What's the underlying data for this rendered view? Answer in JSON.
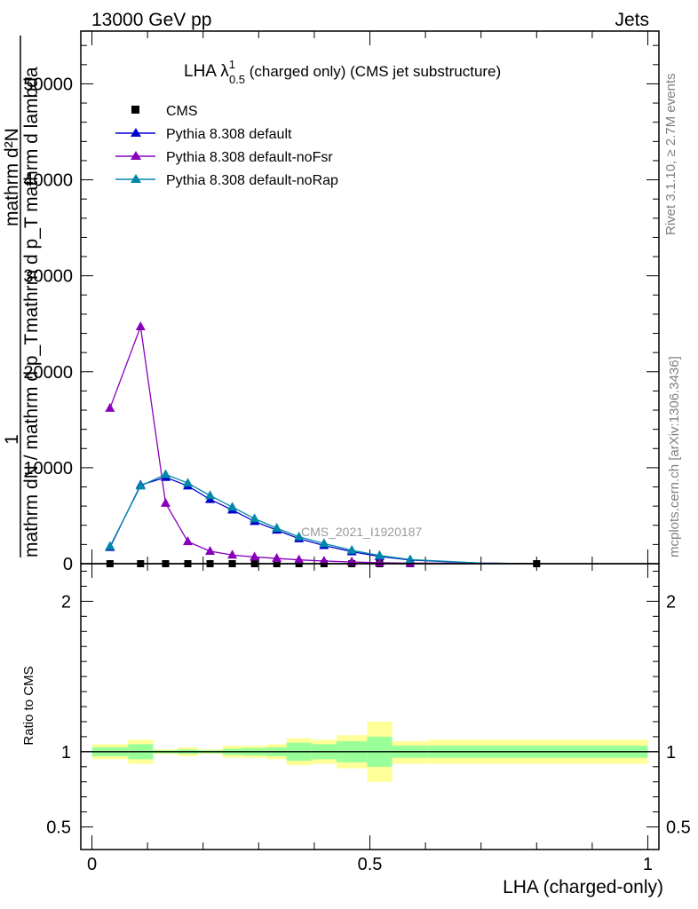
{
  "header": {
    "left": "13000 GeV pp",
    "right": "Jets"
  },
  "side_labels": {
    "rivet": "Rivet 3.1.10, ≥ 2.7M events",
    "mcplots": "mcplots.cern.ch [arXiv:1306.3436]"
  },
  "watermark": "CMS_2021_I1920187",
  "chart_data": {
    "type": "line",
    "title": {
      "main": "LHA λ",
      "sup": "1",
      "sub": "0.5",
      "rest": " (charged only) (CMS jet substructure)"
    },
    "ylabel": {
      "numerator": "1",
      "denominator": "mathrm dN / mathrm d p_T",
      "overlap_line1": "mathrm d²N",
      "overlap_line2": "mathrm d p_T mathrm d lambda"
    },
    "xlabel": "LHA (charged-only)",
    "xlim": [
      -0.02,
      1.02
    ],
    "xticks": [
      "0",
      "0.5",
      "1"
    ],
    "ylim": [
      0,
      55500
    ],
    "yticks": [
      "0",
      "10000",
      "20000",
      "30000",
      "40000",
      "50000"
    ],
    "ratio_ylabel": "Ratio to CMS",
    "ratio_ylim": [
      0.35,
      2.25
    ],
    "ratio_yticks": [
      "0.5",
      "1",
      "2"
    ],
    "legend_position": "top-left",
    "x": [
      0.0325,
      0.0875,
      0.1325,
      0.1725,
      0.2125,
      0.2525,
      0.2925,
      0.3325,
      0.3725,
      0.4175,
      0.4675,
      0.5175,
      0.5725
    ],
    "series": [
      {
        "name": "CMS",
        "color": "#000000",
        "marker": "square",
        "x": [
          0.0325,
          0.0875,
          0.1325,
          0.1725,
          0.2125,
          0.2525,
          0.2925,
          0.3325,
          0.3725,
          0.4175,
          0.4675,
          0.5175,
          0.5725,
          0.8
        ],
        "values": [
          0,
          0,
          0,
          0,
          0,
          0,
          0,
          0,
          0,
          0,
          0,
          0,
          0,
          0
        ]
      },
      {
        "name": "Pythia 8.308 default",
        "color": "#0000cc",
        "marker": "triangle",
        "values": [
          1700,
          8200,
          9000,
          8100,
          6700,
          5600,
          4400,
          3500,
          2600,
          1900,
          1250,
          750,
          380
        ]
      },
      {
        "name": "Pythia 8.308 default-noFsr",
        "color": "#8800bb",
        "marker": "triangle",
        "values": [
          16200,
          24700,
          6300,
          2300,
          1300,
          900,
          700,
          550,
          400,
          280,
          180,
          100,
          50
        ]
      },
      {
        "name": "Pythia 8.308 default-noRap",
        "color": "#0088aa",
        "marker": "triangle",
        "values": [
          1800,
          8100,
          9300,
          8400,
          7100,
          5900,
          4700,
          3700,
          2800,
          2100,
          1400,
          850,
          430
        ]
      }
    ],
    "ratio_bands": {
      "edges": [
        0.0,
        0.065,
        0.11,
        0.155,
        0.19,
        0.235,
        0.27,
        0.315,
        0.35,
        0.395,
        0.44,
        0.495,
        0.54,
        0.605,
        1.0
      ],
      "green_lo": [
        0.97,
        0.95,
        0.99,
        0.985,
        0.99,
        0.98,
        0.975,
        0.97,
        0.94,
        0.95,
        0.93,
        0.9,
        0.96,
        0.96
      ],
      "green_hi": [
        1.03,
        1.05,
        1.01,
        1.015,
        1.01,
        1.02,
        1.025,
        1.03,
        1.06,
        1.05,
        1.07,
        1.1,
        1.04,
        1.04
      ],
      "yellow_lo": [
        0.95,
        0.92,
        0.985,
        0.97,
        0.985,
        0.96,
        0.96,
        0.95,
        0.91,
        0.92,
        0.89,
        0.8,
        0.92,
        0.92
      ],
      "yellow_hi": [
        1.05,
        1.08,
        1.015,
        1.03,
        1.015,
        1.04,
        1.04,
        1.05,
        1.09,
        1.08,
        1.11,
        1.2,
        1.07,
        1.08
      ]
    },
    "colors": {
      "band_green": "#99ff99",
      "band_yellow": "#ffff99"
    }
  }
}
